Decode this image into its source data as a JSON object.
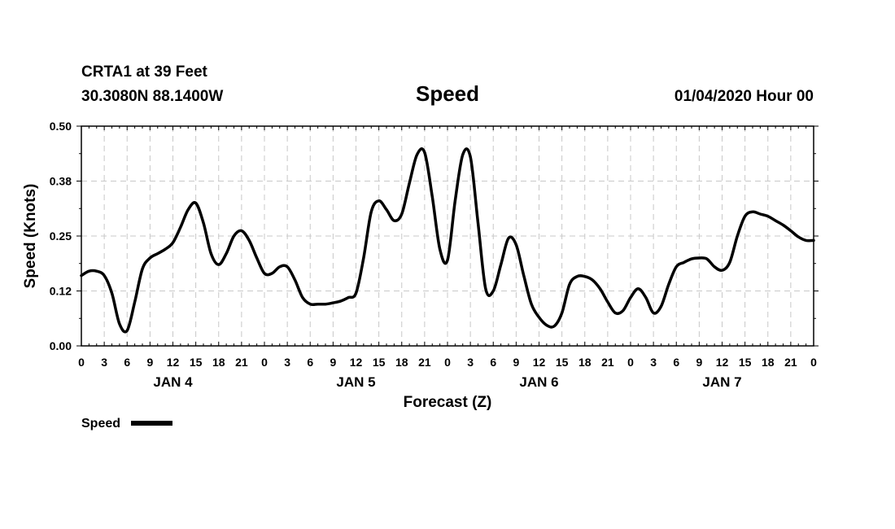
{
  "header": {
    "station_line": "CRTA1 at 39 Feet",
    "coords_line": "30.3080N 88.1400W",
    "title": "Speed",
    "run_line": "01/04/2020 Hour 00"
  },
  "legend": {
    "label": "Speed",
    "color": "#000000"
  },
  "chart_data": {
    "type": "line",
    "title": "Speed",
    "xlabel": "Forecast (Z)",
    "ylabel": "Speed (Knots)",
    "ylim": [
      0,
      0.5
    ],
    "y_tick_values": [
      0,
      0.125,
      0.25,
      0.375,
      0.5
    ],
    "y_tick_labels": [
      "0.00",
      "0.12",
      "0.25",
      "0.38",
      "0.50"
    ],
    "xlim_hours": [
      0,
      96
    ],
    "x_tick_labels": [
      "0",
      "3",
      "6",
      "9",
      "12",
      "15",
      "18",
      "21",
      "0",
      "3",
      "6",
      "9",
      "12",
      "15",
      "18",
      "21",
      "0",
      "3",
      "6",
      "9",
      "12",
      "15",
      "18",
      "21",
      "0",
      "3",
      "6",
      "9",
      "12",
      "15",
      "18",
      "21",
      "0"
    ],
    "day_labels": [
      {
        "label": "JAN 4",
        "hour": 12
      },
      {
        "label": "JAN 5",
        "hour": 36
      },
      {
        "label": "JAN 6",
        "hour": 60
      },
      {
        "label": "JAN 7",
        "hour": 84
      }
    ],
    "grid": true,
    "legend_position": "bottom-left",
    "series": [
      {
        "name": "Speed",
        "color": "#000000",
        "x_hours": [
          0,
          1,
          2,
          3,
          4,
          5,
          6,
          7,
          8,
          9,
          10,
          11,
          12,
          13,
          14,
          15,
          16,
          17,
          18,
          19,
          20,
          21,
          22,
          23,
          24,
          25,
          26,
          27,
          28,
          29,
          30,
          31,
          32,
          33,
          34,
          35,
          36,
          37,
          38,
          39,
          40,
          41,
          42,
          43,
          44,
          45,
          46,
          47,
          48,
          49,
          50,
          51,
          52,
          53,
          54,
          55,
          56,
          57,
          58,
          59,
          60,
          61,
          62,
          63,
          64,
          65,
          66,
          67,
          68,
          69,
          70,
          71,
          72,
          73,
          74,
          75,
          76,
          77,
          78,
          79,
          80,
          81,
          82,
          83,
          84,
          85,
          86,
          87,
          88,
          89,
          90,
          91,
          92,
          93,
          94,
          95,
          96
        ],
        "values": [
          0.16,
          0.17,
          0.17,
          0.16,
          0.12,
          0.05,
          0.035,
          0.1,
          0.175,
          0.2,
          0.21,
          0.22,
          0.235,
          0.27,
          0.31,
          0.325,
          0.28,
          0.21,
          0.185,
          0.21,
          0.25,
          0.262,
          0.24,
          0.2,
          0.165,
          0.165,
          0.18,
          0.18,
          0.15,
          0.11,
          0.095,
          0.095,
          0.095,
          0.098,
          0.102,
          0.11,
          0.12,
          0.2,
          0.305,
          0.33,
          0.31,
          0.285,
          0.3,
          0.37,
          0.435,
          0.44,
          0.34,
          0.22,
          0.195,
          0.33,
          0.435,
          0.43,
          0.28,
          0.13,
          0.125,
          0.185,
          0.245,
          0.23,
          0.16,
          0.095,
          0.065,
          0.047,
          0.045,
          0.075,
          0.14,
          0.158,
          0.158,
          0.15,
          0.13,
          0.1,
          0.075,
          0.08,
          0.11,
          0.13,
          0.11,
          0.075,
          0.09,
          0.14,
          0.18,
          0.19,
          0.198,
          0.2,
          0.198,
          0.18,
          0.172,
          0.19,
          0.25,
          0.295,
          0.305,
          0.3,
          0.295,
          0.285,
          0.275,
          0.262,
          0.248,
          0.24,
          0.24
        ]
      }
    ]
  }
}
